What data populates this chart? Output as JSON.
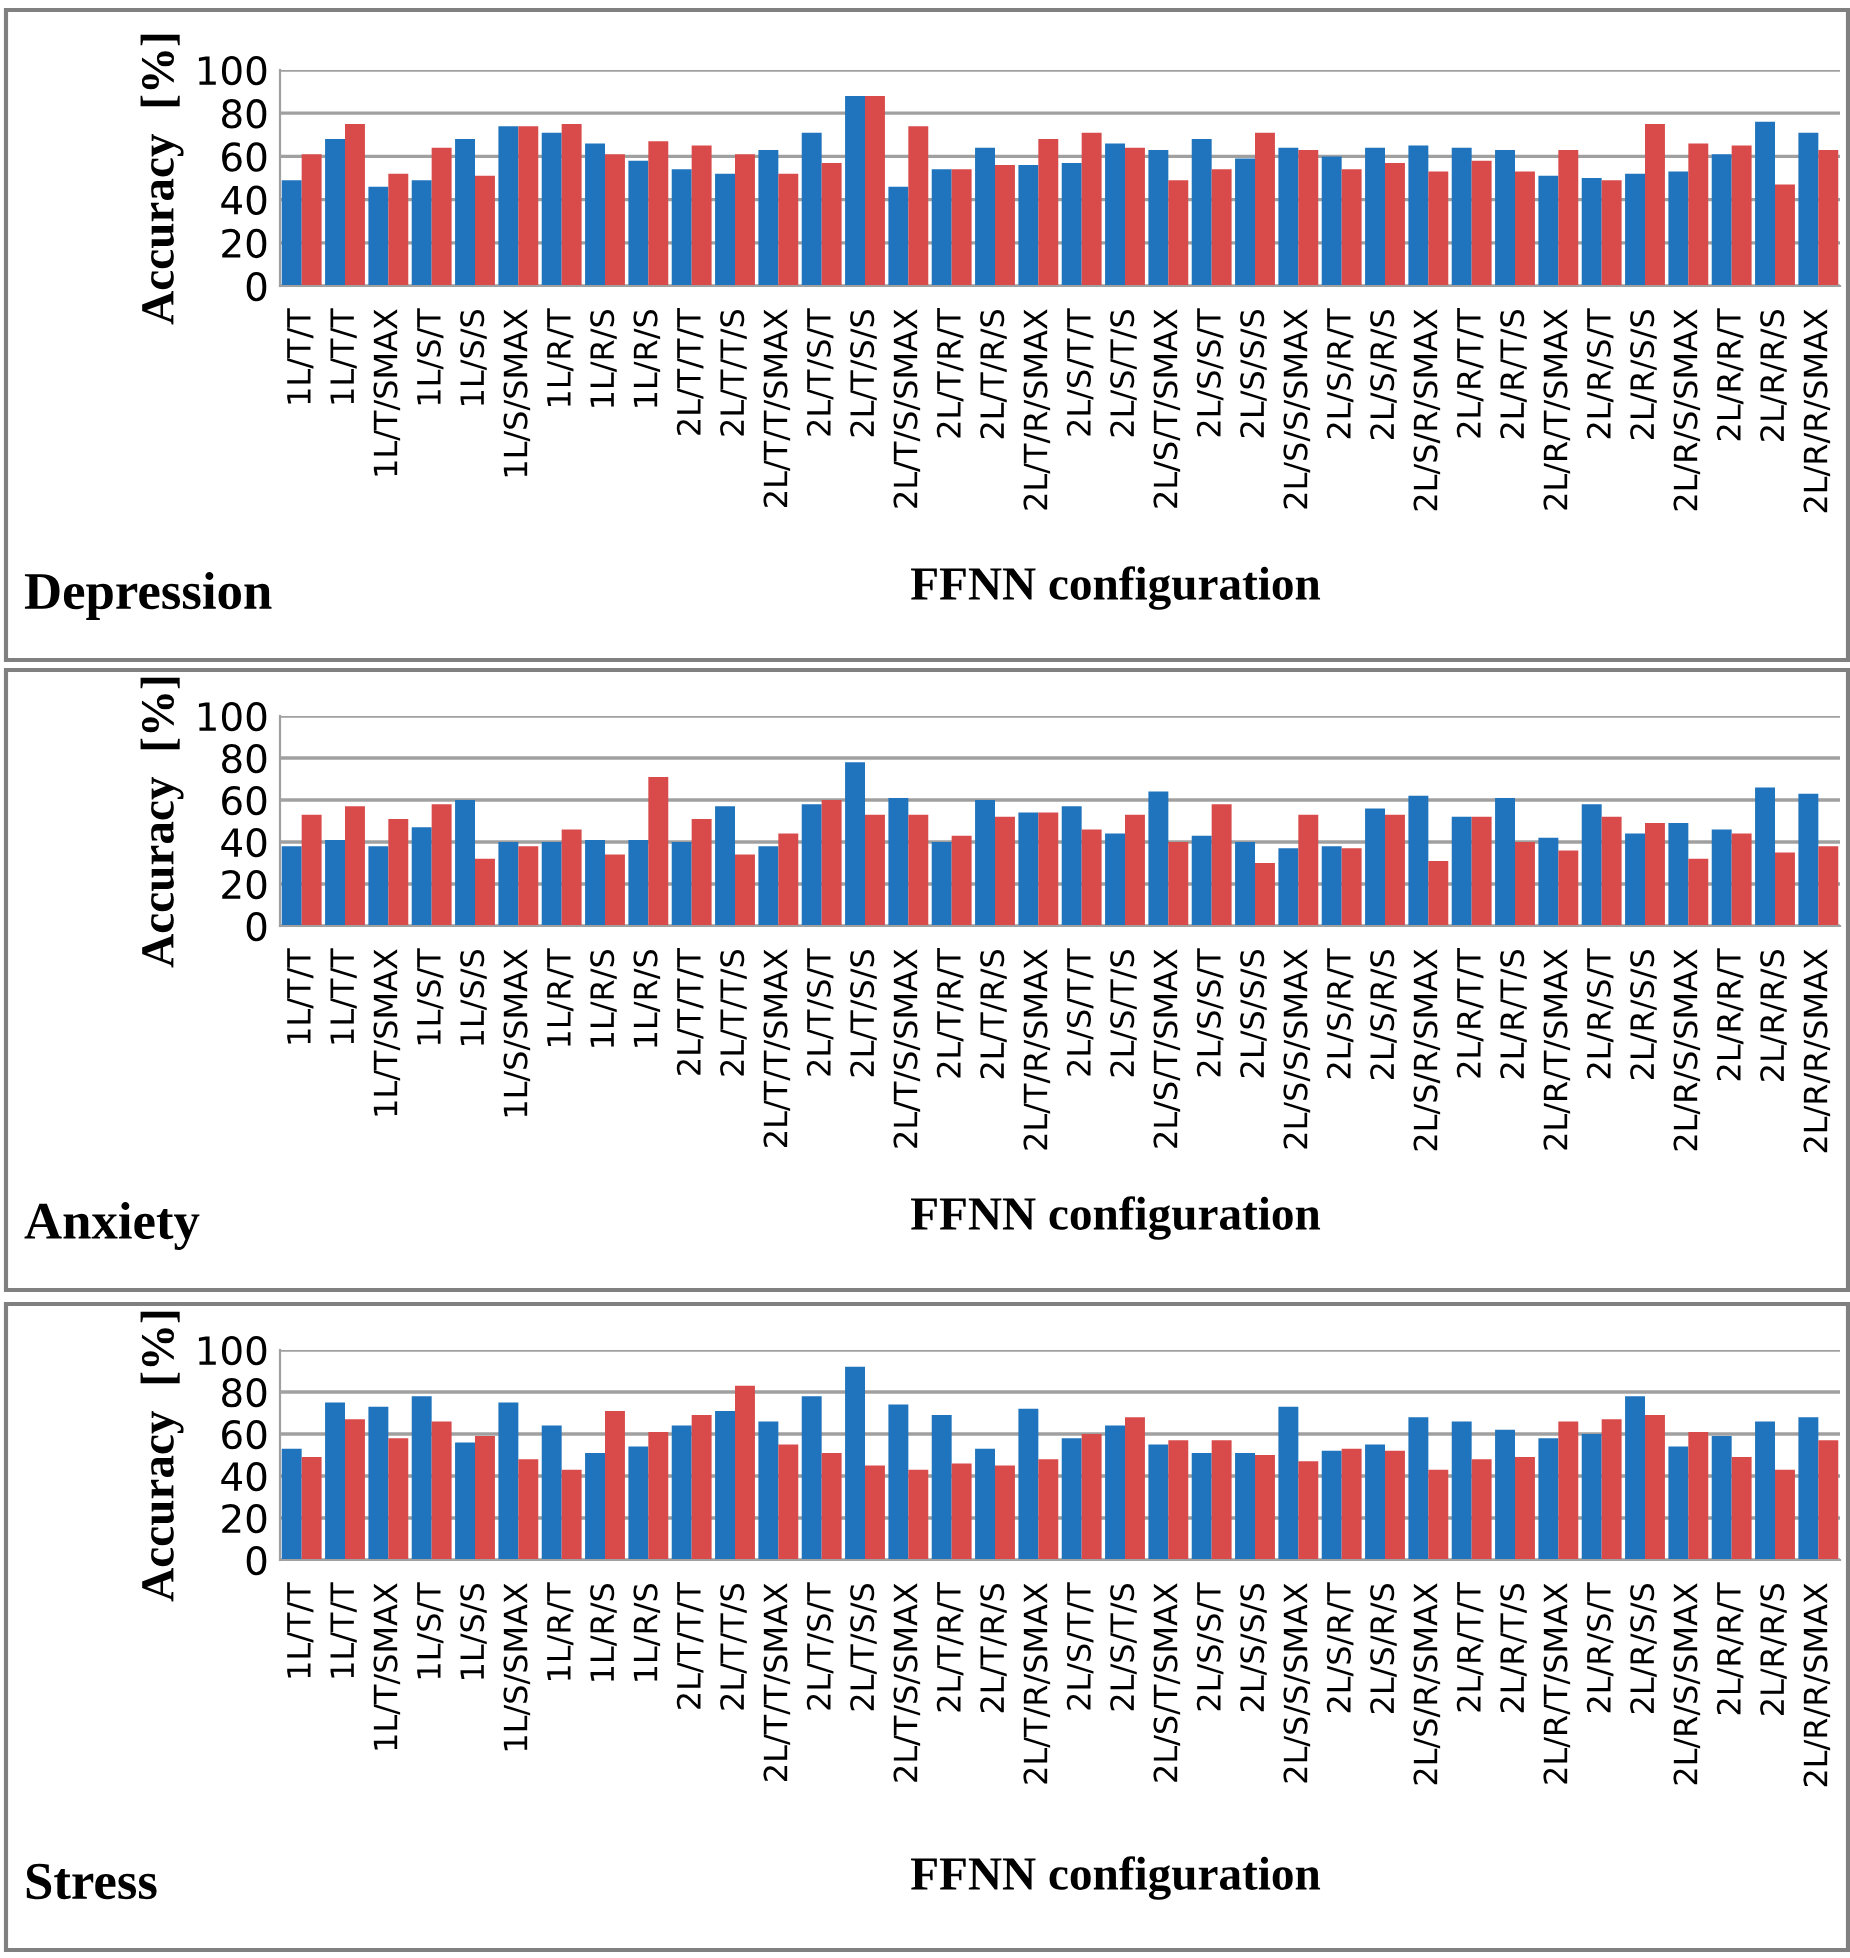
{
  "chart_data": [
    {
      "type": "bar",
      "title": "Depression",
      "xlabel": "FFNN configuration",
      "ylabel": "Accuracy  [%]",
      "categories": [
        "1L/T/T",
        "1L/T/T",
        "1L/T/SMAX",
        "1L/S/T",
        "1L/S/S",
        "1L/S/SMAX",
        "1L/R/T",
        "1L/R/S",
        "1L/R/S",
        "2L/T/T/T",
        "2L/T/T/S",
        "2L/T/T/SMAX",
        "2L/T/S/T",
        "2L/T/S/S",
        "2L/T/S/SMAX",
        "2L/T/R/T",
        "2L/T/R/S",
        "2L/T/R/SMAX",
        "2L/S/T/T",
        "2L/S/T/S",
        "2L/S/T/SMAX",
        "2L/S/S/T",
        "2L/S/S/S",
        "2L/S/S/SMAX",
        "2L/S/R/T",
        "2L/S/R/S",
        "2L/S/R/SMAX",
        "2L/R/T/T",
        "2L/R/T/S",
        "2L/R/T/SMAX",
        "2L/R/S/T",
        "2L/R/S/S",
        "2L/R/S/SMAX",
        "2L/R/R/T",
        "2L/R/R/S",
        "2L/R/R/SMAX"
      ],
      "series": [
        {
          "color": "#1f74bd",
          "values": [
            49,
            68,
            46,
            49,
            68,
            74,
            71,
            66,
            58,
            54,
            52,
            63,
            71,
            88,
            46,
            54,
            64,
            56,
            57,
            66,
            63,
            68,
            59,
            64,
            60,
            64,
            65,
            64,
            63,
            51,
            50,
            52,
            53,
            61,
            76,
            71
          ]
        },
        {
          "color": "#d94b4b",
          "values": [
            61,
            75,
            52,
            64,
            51,
            74,
            75,
            61,
            67,
            65,
            61,
            52,
            57,
            88,
            74,
            54,
            56,
            68,
            71,
            64,
            49,
            54,
            71,
            63,
            54,
            57,
            53,
            58,
            53,
            63,
            49,
            75,
            66,
            65,
            47,
            63
          ]
        }
      ],
      "ylim": [
        0,
        100
      ],
      "yticks": [
        0,
        20,
        40,
        60,
        80,
        100
      ],
      "grid": "y"
    },
    {
      "type": "bar",
      "title": "Anxiety",
      "xlabel": "FFNN configuration",
      "ylabel": "Accuracy  [%]",
      "categories": [
        "1L/T/T",
        "1L/T/T",
        "1L/T/SMAX",
        "1L/S/T",
        "1L/S/S",
        "1L/S/SMAX",
        "1L/R/T",
        "1L/R/S",
        "1L/R/S",
        "2L/T/T/T",
        "2L/T/T/S",
        "2L/T/T/SMAX",
        "2L/T/S/T",
        "2L/T/S/S",
        "2L/T/S/SMAX",
        "2L/T/R/T",
        "2L/T/R/S",
        "2L/T/R/SMAX",
        "2L/S/T/T",
        "2L/S/T/S",
        "2L/S/T/SMAX",
        "2L/S/S/T",
        "2L/S/S/S",
        "2L/S/S/SMAX",
        "2L/S/R/T",
        "2L/S/R/S",
        "2L/S/R/SMAX",
        "2L/R/T/T",
        "2L/R/T/S",
        "2L/R/T/SMAX",
        "2L/R/S/T",
        "2L/R/S/S",
        "2L/R/S/SMAX",
        "2L/R/R/T",
        "2L/R/R/S",
        "2L/R/R/SMAX"
      ],
      "series": [
        {
          "color": "#1f74bd",
          "values": [
            38,
            41,
            38,
            47,
            60,
            40,
            40,
            41,
            41,
            40,
            57,
            38,
            58,
            78,
            61,
            40,
            60,
            54,
            57,
            44,
            64,
            43,
            40,
            37,
            38,
            56,
            62,
            52,
            61,
            42,
            58,
            44,
            49,
            46,
            66,
            63
          ]
        },
        {
          "color": "#d94b4b",
          "values": [
            53,
            57,
            51,
            58,
            32,
            38,
            46,
            34,
            71,
            51,
            34,
            44,
            60,
            53,
            53,
            43,
            52,
            54,
            46,
            53,
            40,
            58,
            30,
            53,
            37,
            53,
            31,
            52,
            40,
            36,
            52,
            49,
            32,
            44,
            35,
            38
          ]
        }
      ],
      "ylim": [
        0,
        100
      ],
      "yticks": [
        0,
        20,
        40,
        60,
        80,
        100
      ],
      "grid": "y"
    },
    {
      "type": "bar",
      "title": "Stress",
      "xlabel": "FFNN configuration",
      "ylabel": "Accuracy  [%]",
      "categories": [
        "1L/T/T",
        "1L/T/T",
        "1L/T/SMAX",
        "1L/S/T",
        "1L/S/S",
        "1L/S/SMAX",
        "1L/R/T",
        "1L/R/S",
        "1L/R/S",
        "2L/T/T/T",
        "2L/T/T/S",
        "2L/T/T/SMAX",
        "2L/T/S/T",
        "2L/T/S/S",
        "2L/T/S/SMAX",
        "2L/T/R/T",
        "2L/T/R/S",
        "2L/T/R/SMAX",
        "2L/S/T/T",
        "2L/S/T/S",
        "2L/S/T/SMAX",
        "2L/S/S/T",
        "2L/S/S/S",
        "2L/S/S/SMAX",
        "2L/S/R/T",
        "2L/S/R/S",
        "2L/S/R/SMAX",
        "2L/R/T/T",
        "2L/R/T/S",
        "2L/R/T/SMAX",
        "2L/R/S/T",
        "2L/R/S/S",
        "2L/R/S/SMAX",
        "2L/R/R/T",
        "2L/R/R/S",
        "2L/R/R/SMAX"
      ],
      "series": [
        {
          "color": "#1f74bd",
          "values": [
            53,
            75,
            73,
            78,
            56,
            75,
            64,
            51,
            54,
            64,
            71,
            66,
            78,
            92,
            74,
            69,
            53,
            72,
            58,
            64,
            55,
            51,
            51,
            73,
            52,
            55,
            68,
            66,
            62,
            58,
            60,
            78,
            54,
            59,
            66,
            68
          ]
        },
        {
          "color": "#d94b4b",
          "values": [
            49,
            67,
            58,
            66,
            59,
            48,
            43,
            71,
            61,
            69,
            83,
            55,
            51,
            45,
            43,
            46,
            45,
            48,
            60,
            68,
            57,
            57,
            50,
            47,
            53,
            52,
            43,
            48,
            49,
            66,
            67,
            69,
            61,
            49,
            43,
            57
          ]
        }
      ],
      "ylim": [
        0,
        100
      ],
      "yticks": [
        0,
        20,
        40,
        60,
        80,
        100
      ],
      "grid": "y"
    }
  ]
}
